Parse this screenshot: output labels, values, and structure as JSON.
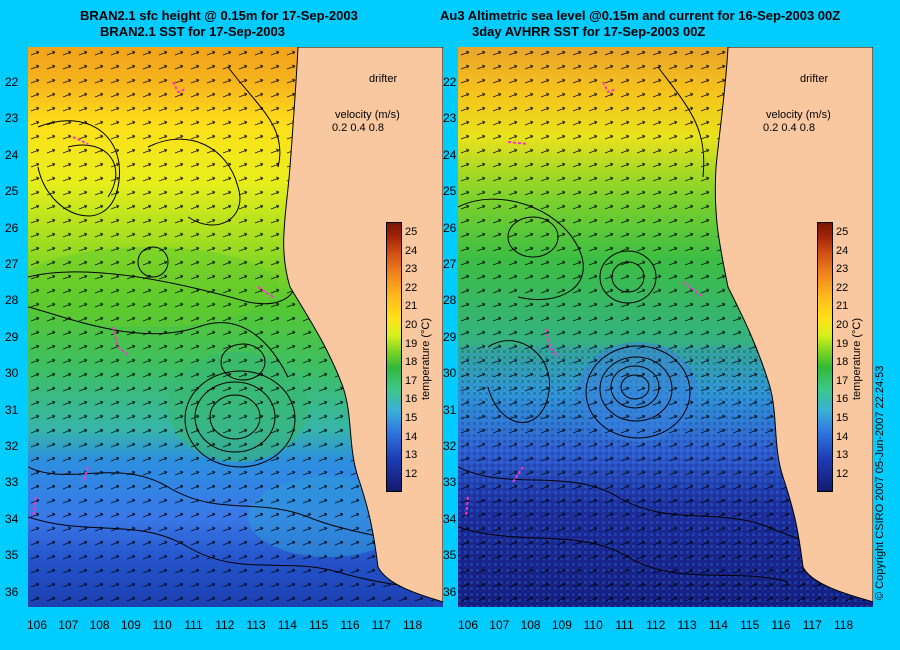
{
  "left_panel": {
    "title_line1": "BRAN2.1 sfc height @ 0.15m for 17-Sep-2003",
    "title_line2": "BRAN2.1 SST for 17-Sep-2003",
    "colorbar_title": "temperature (°C)"
  },
  "right_panel": {
    "title_line1": "Au3 Altimetric sea level  @0.15m and current for 16-Sep-2003 00Z",
    "title_line2": "3day AVHRR SST for 17-Sep-2003 00Z",
    "colorbar_title": "temperature (°C)"
  },
  "legend": {
    "drifter_label": "drifter",
    "velocity_title": "velocity (m/s)",
    "velocity_scale": [
      "0.2",
      "0.4",
      "0.8"
    ]
  },
  "latitude_labels": [
    "22",
    "23",
    "24",
    "25",
    "26",
    "27",
    "28",
    "29",
    "30",
    "31",
    "32",
    "33",
    "34",
    "35",
    "36"
  ],
  "longitude_labels": [
    "106",
    "107",
    "108",
    "109",
    "110",
    "111",
    "112",
    "113",
    "114",
    "115",
    "116",
    "117",
    "118"
  ],
  "colorbar_ticks": [
    "25",
    "24",
    "23",
    "22",
    "21",
    "20",
    "19",
    "18",
    "17",
    "16",
    "15",
    "14",
    "13",
    "12"
  ],
  "copyright": "© Copyright CSIRO 2007   05-Jun-2007 22:24:53",
  "colors": {
    "background": "#00ccff",
    "land": "#f9c8a0",
    "drifter": "#ff33cc"
  }
}
